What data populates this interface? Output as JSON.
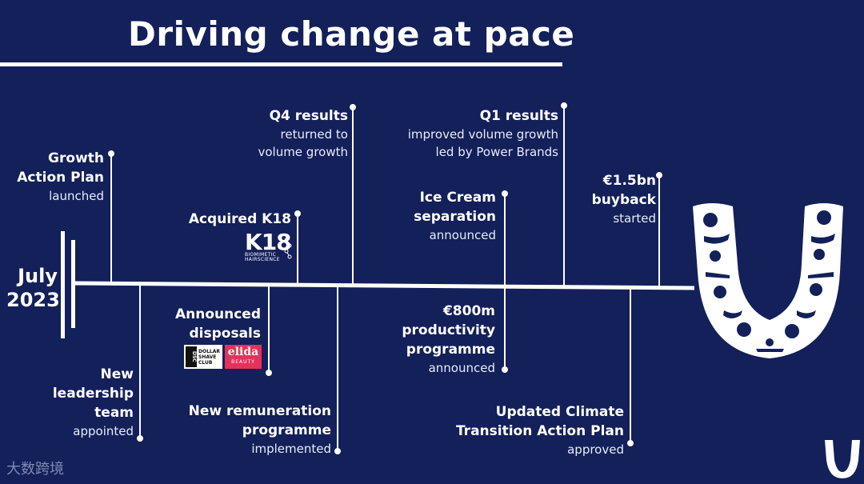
{
  "title": "Driving change at pace",
  "start": {
    "line1": "July",
    "line2": "2023"
  },
  "events": {
    "growth": {
      "h1": "Growth",
      "h2": "Action Plan",
      "s1": "launched"
    },
    "leadership": {
      "h1": "New",
      "h2": "leadership",
      "h3": "team",
      "s1": "appointed"
    },
    "k18": {
      "h1": "Acquired K18"
    },
    "disposals": {
      "h1": "Announced",
      "h2": "disposals"
    },
    "q4": {
      "h1": "Q4 results",
      "s1": "returned to",
      "s2": "volume growth"
    },
    "remuneration": {
      "h1": "New remuneration",
      "h2": "programme",
      "s1": "implemented"
    },
    "icecream": {
      "h1": "Ice Cream",
      "h2": "separation",
      "s1": "announced"
    },
    "productivity": {
      "h1": "€800m",
      "h2": "productivity",
      "h3": "programme",
      "s1": "announced"
    },
    "q1": {
      "h1": "Q1 results",
      "s1": "improved volume growth",
      "s2": "led by Power Brands"
    },
    "climate": {
      "h1": "Updated Climate",
      "h2": "Transition Action Plan",
      "s1": "approved"
    },
    "buyback": {
      "h1": "€1.5bn",
      "h2": "buyback",
      "s1": "started"
    }
  },
  "logos": {
    "k18": {
      "big": "K18",
      "small1": "BIOMIMETIC",
      "small2": "HAIRSCIENCE"
    },
    "dsc": {
      "mark": "DSC",
      "l1": "DOLLAR",
      "l2": "SHAVE",
      "l3": "CLUB"
    },
    "elida": {
      "big": "elida",
      "small": "BEAUTY"
    },
    "unilever": "unilever-u-icon"
  },
  "watermark": "大数跨境",
  "colors": {
    "background": "#13205a",
    "foreground": "#ffffff"
  }
}
